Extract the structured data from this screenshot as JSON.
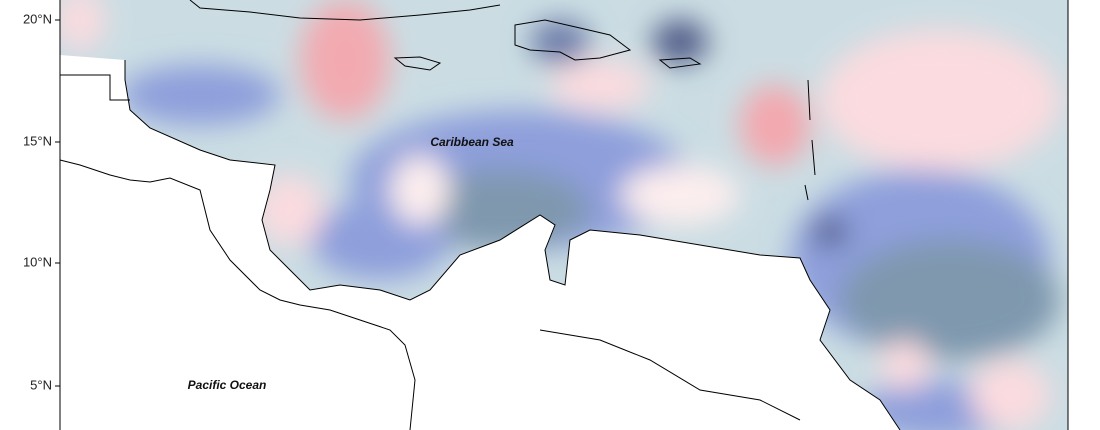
{
  "axis": {
    "ticks": [
      "20°N",
      "15°N",
      "10°N",
      "5°N"
    ]
  },
  "labels": {
    "sea": "Caribbean Sea",
    "ocean": "Pacific Ocean"
  }
}
